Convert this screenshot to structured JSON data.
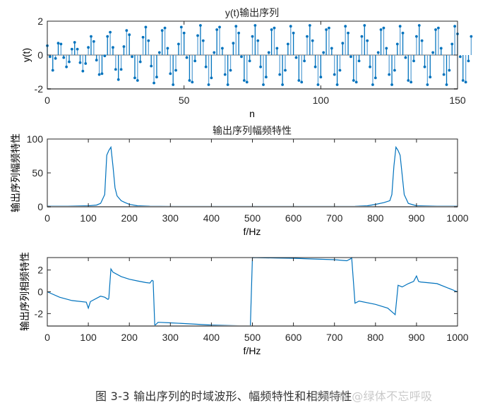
{
  "figure": {
    "caption_main": "图 3-3 输出序列的时域波形、幅频特性和相频特性",
    "watermark": "CSDN @绿体不忘呼吸"
  },
  "chart_data": [
    {
      "type": "stem",
      "title": "y(t)输出序列",
      "xlabel": "n",
      "ylabel": "y(t)",
      "xlim": [
        0,
        150
      ],
      "ylim": [
        -2,
        2
      ],
      "xticks": [
        0,
        50,
        100,
        150
      ],
      "yticks": [
        -2,
        0,
        2
      ],
      "grid": false,
      "color": "#0072BD",
      "x_start": 0,
      "values": [
        0.55,
        -0.1,
        -0.9,
        -0.2,
        0.7,
        0.65,
        -0.15,
        -0.7,
        -0.4,
        0.35,
        0.75,
        0.35,
        -0.45,
        -0.95,
        -0.5,
        0.45,
        1.1,
        0.8,
        -0.3,
        -1.15,
        -1.1,
        -0.05,
        1.1,
        1.35,
        0.45,
        -0.85,
        -1.45,
        -0.85,
        0.5,
        1.45,
        1.2,
        -0.1,
        -1.35,
        -1.5,
        -0.4,
        1.05,
        1.65,
        0.85,
        -0.65,
        -1.65,
        -1.3,
        0.15,
        1.45,
        1.6,
        0.4,
        -1.1,
        -1.75,
        -0.9,
        0.65,
        1.65,
        1.3,
        -0.15,
        -1.5,
        -1.6,
        -0.35,
        1.15,
        1.75,
        0.85,
        -0.7,
        -1.75,
        -1.35,
        0.15,
        1.5,
        1.65,
        0.4,
        -1.15,
        -1.75,
        -0.9,
        0.7,
        1.7,
        1.3,
        -0.1,
        -1.5,
        -1.6,
        -0.35,
        1.1,
        1.75,
        0.85,
        -0.7,
        -1.75,
        -1.3,
        0.15,
        1.5,
        1.6,
        0.4,
        -1.15,
        -1.75,
        -0.9,
        0.65,
        1.7,
        1.3,
        -0.15,
        -1.5,
        -1.6,
        -0.35,
        1.1,
        1.75,
        0.85,
        -0.7,
        -1.75,
        -1.3,
        0.15,
        1.5,
        1.6,
        0.4,
        -1.15,
        -1.75,
        -0.9,
        0.7,
        1.7,
        1.3,
        -0.1,
        -1.5,
        -1.6,
        -0.35,
        1.1,
        1.75,
        0.85,
        -0.7,
        -1.75,
        -1.35,
        0.15,
        1.5,
        1.6,
        0.4,
        -1.15,
        -1.75,
        -0.9,
        0.65,
        1.7,
        1.3,
        -0.15,
        -1.5,
        -1.6,
        -0.35,
        1.1,
        1.75,
        0.85,
        -0.7,
        -1.75,
        -1.3,
        0.15,
        1.5,
        1.6,
        0.4,
        -1.15,
        -1.75,
        -0.9,
        0.65,
        1.7,
        1.25,
        -0.1,
        -1.5,
        -1.6,
        -0.35,
        1.1
      ]
    },
    {
      "type": "line",
      "title": "输出序列幅频特性",
      "xlabel": "f/Hz",
      "ylabel": "输出序列幅频特性",
      "xlim": [
        0,
        1000
      ],
      "ylim": [
        0,
        100
      ],
      "xticks": [
        0,
        100,
        200,
        300,
        400,
        500,
        600,
        700,
        800,
        900,
        1000
      ],
      "yticks": [
        0,
        50,
        100
      ],
      "grid": false,
      "color": "#0072BD",
      "x": [
        0,
        50,
        100,
        120,
        130,
        140,
        145,
        150,
        155,
        160,
        165,
        170,
        180,
        190,
        200,
        220,
        250,
        300,
        400,
        500,
        600,
        700,
        750,
        780,
        800,
        820,
        835,
        840,
        845,
        850,
        855,
        860,
        870,
        880,
        900,
        950,
        1000
      ],
      "y": [
        0.8,
        0.8,
        1.5,
        2.5,
        5,
        18,
        76,
        83,
        88,
        60,
        28,
        16,
        9,
        6,
        3.5,
        1.5,
        0.8,
        0.5,
        0.5,
        0.5,
        0.5,
        0.5,
        0.6,
        1.5,
        3.5,
        6,
        9,
        18,
        60,
        88,
        83,
        76,
        18,
        5,
        1.5,
        0.8,
        0.8
      ]
    },
    {
      "type": "line",
      "title": "",
      "xlabel": "f/Hz",
      "ylabel": "输出序列相频特性",
      "xlim": [
        0,
        1000
      ],
      "ylim": [
        -3.1416,
        3.1416
      ],
      "xticks": [
        0,
        100,
        200,
        300,
        400,
        500,
        600,
        700,
        800,
        900,
        1000
      ],
      "yticks": [
        -2,
        0,
        2
      ],
      "grid": false,
      "color": "#0072BD",
      "x": [
        0,
        30,
        60,
        95,
        100,
        105,
        130,
        140,
        148,
        150,
        155,
        160,
        180,
        200,
        220,
        240,
        250,
        255,
        258,
        262,
        270,
        300,
        350,
        400,
        450,
        495,
        500,
        520,
        560,
        600,
        640,
        700,
        730,
        738,
        742,
        750,
        760,
        800,
        830,
        848,
        855,
        865,
        880,
        893,
        900,
        905,
        910,
        950,
        1000
      ],
      "y": [
        0.0,
        -0.5,
        -0.8,
        -0.95,
        -1.5,
        -0.9,
        -0.4,
        -0.5,
        -0.7,
        -0.6,
        2.1,
        1.8,
        1.4,
        1.15,
        1.0,
        0.85,
        0.8,
        1.05,
        1.0,
        -3.1,
        -2.8,
        -2.85,
        -2.95,
        -3.05,
        -3.1,
        -3.14,
        3.14,
        3.12,
        3.1,
        3.08,
        3.02,
        2.95,
        2.85,
        3.0,
        3.12,
        -1.05,
        -0.85,
        -1.15,
        -1.5,
        -2.1,
        0.6,
        0.45,
        0.75,
        0.95,
        1.45,
        0.95,
        0.9,
        0.75,
        0.0
      ]
    }
  ]
}
